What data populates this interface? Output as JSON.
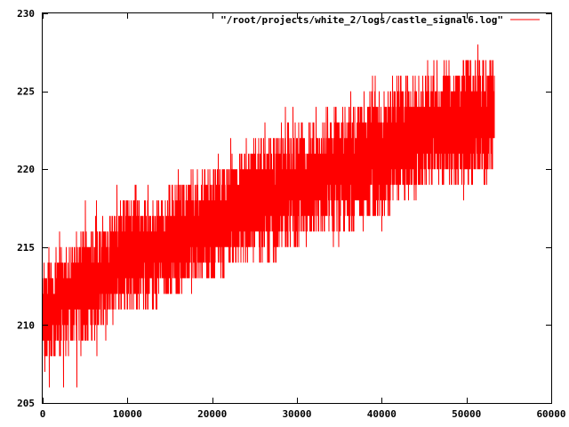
{
  "chart_data": {
    "type": "line",
    "title": "",
    "xlabel": "",
    "ylabel": "",
    "xlim": [
      0,
      60000
    ],
    "ylim": [
      205,
      230
    ],
    "x_ticks": [
      0,
      10000,
      20000,
      30000,
      40000,
      50000,
      60000
    ],
    "y_ticks": [
      205,
      210,
      215,
      220,
      225,
      230
    ],
    "x_tick_labels": [
      "0",
      "10000",
      "20000",
      "30000",
      "40000",
      "50000",
      "60000"
    ],
    "y_tick_labels": [
      "205",
      "210",
      "215",
      "220",
      "225",
      "230"
    ],
    "grid": false,
    "legend": {
      "placement": "top-right"
    },
    "series": [
      {
        "name": "\"/root/projects/white_2/logs/castle_signal6.log\"",
        "color": "#ff0000",
        "x_range": [
          0,
          53300
        ],
        "x": [
          0,
          2000,
          5000,
          8000,
          10000,
          13000,
          16000,
          20000,
          23000,
          26000,
          30000,
          33000,
          36000,
          40000,
          43000,
          46000,
          50000,
          53000,
          53300
        ],
        "lower": [
          207,
          208,
          209,
          210,
          211,
          211,
          212,
          213,
          214,
          214,
          215,
          216,
          216,
          217,
          218,
          219,
          219,
          220,
          222
        ],
        "upper": [
          214,
          215,
          216,
          217,
          218,
          218,
          219,
          220,
          221,
          222,
          223,
          223,
          224,
          225,
          226,
          226,
          227,
          227,
          227
        ],
        "min": [
          205,
          206,
          206,
          209,
          211,
          212,
          212,
          213,
          214,
          214,
          215,
          215,
          215,
          216,
          218,
          218,
          218,
          219,
          220
        ],
        "max": [
          217,
          216,
          218,
          219,
          219,
          220,
          220,
          221,
          222,
          223,
          224,
          224,
          225,
          226,
          227,
          228,
          229,
          229,
          228
        ]
      }
    ]
  }
}
